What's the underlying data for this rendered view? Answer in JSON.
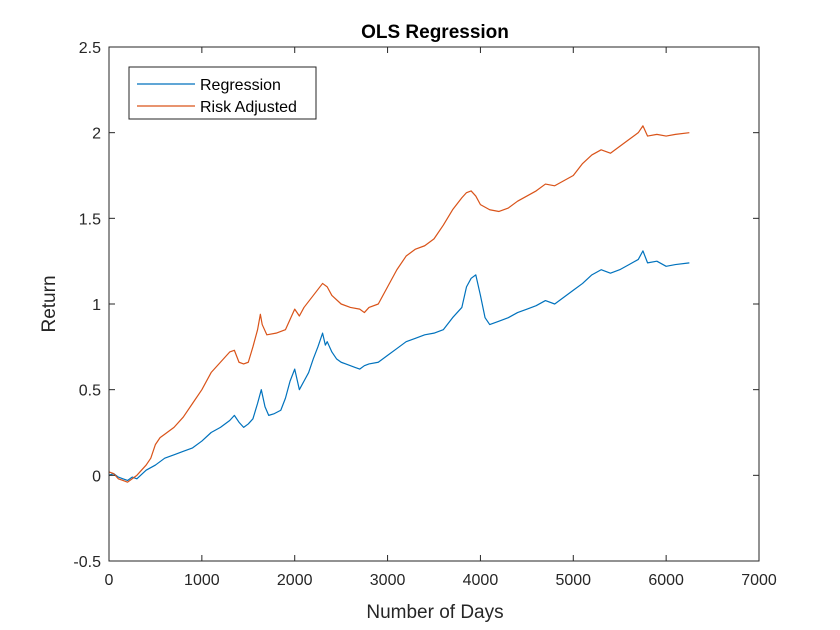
{
  "chart_data": {
    "type": "line",
    "title": "OLS Regression",
    "xlabel": "Number of Days",
    "ylabel": "Return",
    "xlim": [
      0,
      7000
    ],
    "ylim": [
      -0.5,
      2.5
    ],
    "xticks": [
      0,
      1000,
      2000,
      3000,
      4000,
      5000,
      6000,
      7000
    ],
    "yticks": [
      -0.5,
      0,
      0.5,
      1,
      1.5,
      2,
      2.5
    ],
    "xtick_labels": [
      "0",
      "1000",
      "2000",
      "3000",
      "4000",
      "5000",
      "6000",
      "7000"
    ],
    "ytick_labels": [
      "-0.5",
      "0",
      "0.5",
      "1",
      "1.5",
      "2",
      "2.5"
    ],
    "grid": false,
    "legend_position": "top-left",
    "series": [
      {
        "name": "Regression",
        "color": "#0072BD",
        "points": [
          [
            0,
            0.0
          ],
          [
            50,
            0.01
          ],
          [
            100,
            -0.01
          ],
          [
            150,
            -0.02
          ],
          [
            200,
            -0.03
          ],
          [
            250,
            -0.01
          ],
          [
            300,
            -0.02
          ],
          [
            400,
            0.03
          ],
          [
            500,
            0.06
          ],
          [
            600,
            0.1
          ],
          [
            700,
            0.12
          ],
          [
            800,
            0.14
          ],
          [
            900,
            0.16
          ],
          [
            1000,
            0.2
          ],
          [
            1100,
            0.25
          ],
          [
            1200,
            0.28
          ],
          [
            1300,
            0.32
          ],
          [
            1350,
            0.35
          ],
          [
            1400,
            0.31
          ],
          [
            1450,
            0.28
          ],
          [
            1500,
            0.3
          ],
          [
            1550,
            0.33
          ],
          [
            1600,
            0.42
          ],
          [
            1640,
            0.5
          ],
          [
            1680,
            0.4
          ],
          [
            1720,
            0.35
          ],
          [
            1780,
            0.36
          ],
          [
            1850,
            0.38
          ],
          [
            1900,
            0.45
          ],
          [
            1950,
            0.55
          ],
          [
            2000,
            0.62
          ],
          [
            2050,
            0.5
          ],
          [
            2100,
            0.55
          ],
          [
            2150,
            0.6
          ],
          [
            2200,
            0.68
          ],
          [
            2250,
            0.75
          ],
          [
            2300,
            0.83
          ],
          [
            2330,
            0.76
          ],
          [
            2350,
            0.78
          ],
          [
            2400,
            0.72
          ],
          [
            2450,
            0.68
          ],
          [
            2500,
            0.66
          ],
          [
            2550,
            0.65
          ],
          [
            2600,
            0.64
          ],
          [
            2650,
            0.63
          ],
          [
            2700,
            0.62
          ],
          [
            2750,
            0.64
          ],
          [
            2800,
            0.65
          ],
          [
            2900,
            0.66
          ],
          [
            3000,
            0.7
          ],
          [
            3100,
            0.74
          ],
          [
            3200,
            0.78
          ],
          [
            3300,
            0.8
          ],
          [
            3400,
            0.82
          ],
          [
            3500,
            0.83
          ],
          [
            3600,
            0.85
          ],
          [
            3700,
            0.92
          ],
          [
            3800,
            0.98
          ],
          [
            3850,
            1.1
          ],
          [
            3900,
            1.15
          ],
          [
            3950,
            1.17
          ],
          [
            4000,
            1.05
          ],
          [
            4050,
            0.92
          ],
          [
            4100,
            0.88
          ],
          [
            4200,
            0.9
          ],
          [
            4300,
            0.92
          ],
          [
            4400,
            0.95
          ],
          [
            4500,
            0.97
          ],
          [
            4600,
            0.99
          ],
          [
            4700,
            1.02
          ],
          [
            4800,
            1.0
          ],
          [
            4900,
            1.04
          ],
          [
            5000,
            1.08
          ],
          [
            5100,
            1.12
          ],
          [
            5200,
            1.17
          ],
          [
            5300,
            1.2
          ],
          [
            5400,
            1.18
          ],
          [
            5500,
            1.2
          ],
          [
            5600,
            1.23
          ],
          [
            5700,
            1.26
          ],
          [
            5750,
            1.31
          ],
          [
            5800,
            1.24
          ],
          [
            5900,
            1.25
          ],
          [
            6000,
            1.22
          ],
          [
            6100,
            1.23
          ],
          [
            6250,
            1.24
          ]
        ]
      },
      {
        "name": "Risk Adjusted",
        "color": "#D95319",
        "points": [
          [
            0,
            0.02
          ],
          [
            50,
            0.01
          ],
          [
            100,
            -0.02
          ],
          [
            150,
            -0.03
          ],
          [
            200,
            -0.04
          ],
          [
            250,
            -0.02
          ],
          [
            300,
            0.0
          ],
          [
            350,
            0.03
          ],
          [
            400,
            0.06
          ],
          [
            450,
            0.1
          ],
          [
            500,
            0.18
          ],
          [
            550,
            0.22
          ],
          [
            600,
            0.24
          ],
          [
            700,
            0.28
          ],
          [
            800,
            0.34
          ],
          [
            900,
            0.42
          ],
          [
            1000,
            0.5
          ],
          [
            1100,
            0.6
          ],
          [
            1200,
            0.66
          ],
          [
            1300,
            0.72
          ],
          [
            1350,
            0.73
          ],
          [
            1400,
            0.66
          ],
          [
            1450,
            0.65
          ],
          [
            1500,
            0.66
          ],
          [
            1550,
            0.75
          ],
          [
            1600,
            0.85
          ],
          [
            1630,
            0.94
          ],
          [
            1650,
            0.88
          ],
          [
            1700,
            0.82
          ],
          [
            1800,
            0.83
          ],
          [
            1900,
            0.85
          ],
          [
            2000,
            0.97
          ],
          [
            2050,
            0.93
          ],
          [
            2100,
            0.98
          ],
          [
            2200,
            1.05
          ],
          [
            2300,
            1.12
          ],
          [
            2350,
            1.1
          ],
          [
            2400,
            1.05
          ],
          [
            2500,
            1.0
          ],
          [
            2600,
            0.98
          ],
          [
            2700,
            0.97
          ],
          [
            2750,
            0.95
          ],
          [
            2800,
            0.98
          ],
          [
            2900,
            1.0
          ],
          [
            3000,
            1.1
          ],
          [
            3100,
            1.2
          ],
          [
            3200,
            1.28
          ],
          [
            3300,
            1.32
          ],
          [
            3400,
            1.34
          ],
          [
            3500,
            1.38
          ],
          [
            3600,
            1.46
          ],
          [
            3700,
            1.55
          ],
          [
            3800,
            1.62
          ],
          [
            3850,
            1.65
          ],
          [
            3900,
            1.66
          ],
          [
            3950,
            1.63
          ],
          [
            4000,
            1.58
          ],
          [
            4100,
            1.55
          ],
          [
            4200,
            1.54
          ],
          [
            4300,
            1.56
          ],
          [
            4400,
            1.6
          ],
          [
            4500,
            1.63
          ],
          [
            4600,
            1.66
          ],
          [
            4700,
            1.7
          ],
          [
            4800,
            1.69
          ],
          [
            4900,
            1.72
          ],
          [
            5000,
            1.75
          ],
          [
            5100,
            1.82
          ],
          [
            5200,
            1.87
          ],
          [
            5300,
            1.9
          ],
          [
            5400,
            1.88
          ],
          [
            5500,
            1.92
          ],
          [
            5600,
            1.96
          ],
          [
            5700,
            2.0
          ],
          [
            5750,
            2.04
          ],
          [
            5800,
            1.98
          ],
          [
            5900,
            1.99
          ],
          [
            6000,
            1.98
          ],
          [
            6100,
            1.99
          ],
          [
            6250,
            2.0
          ]
        ]
      }
    ]
  }
}
